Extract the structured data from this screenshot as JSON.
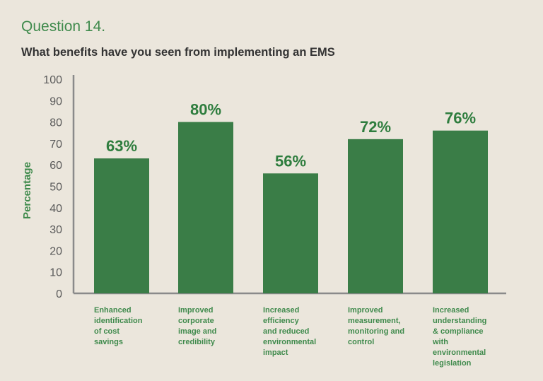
{
  "header": {
    "question": "Question 14.",
    "subtitle": "What benefits have you seen from implementing an EMS"
  },
  "colors": {
    "bar": "#3a7d47",
    "accent": "#3f8a4c",
    "axis": "#8a8a8a",
    "background": "#ebe6dc"
  },
  "chart_data": {
    "type": "bar",
    "ylabel": "Percentage",
    "xlabel": "",
    "ylim": [
      0,
      100
    ],
    "yticks": [
      "0",
      "10",
      "20",
      "30",
      "40",
      "50",
      "60",
      "70",
      "80",
      "90",
      "100"
    ],
    "categories": [
      [
        "Enhanced",
        "identification",
        "of cost",
        "savings"
      ],
      [
        "Improved",
        "corporate",
        "image and",
        "credibility"
      ],
      [
        "Increased",
        "efficiency",
        "and reduced",
        "environmental",
        "impact"
      ],
      [
        "Improved",
        "measurement,",
        "monitoring and",
        "control"
      ],
      [
        "Increased",
        "understanding",
        "& compliance",
        "with",
        "environmental",
        "legislation"
      ]
    ],
    "values": [
      63,
      80,
      56,
      72,
      76
    ],
    "value_labels": [
      "63%",
      "80%",
      "56%",
      "72%",
      "76%"
    ],
    "grid": false,
    "legend": "none"
  }
}
